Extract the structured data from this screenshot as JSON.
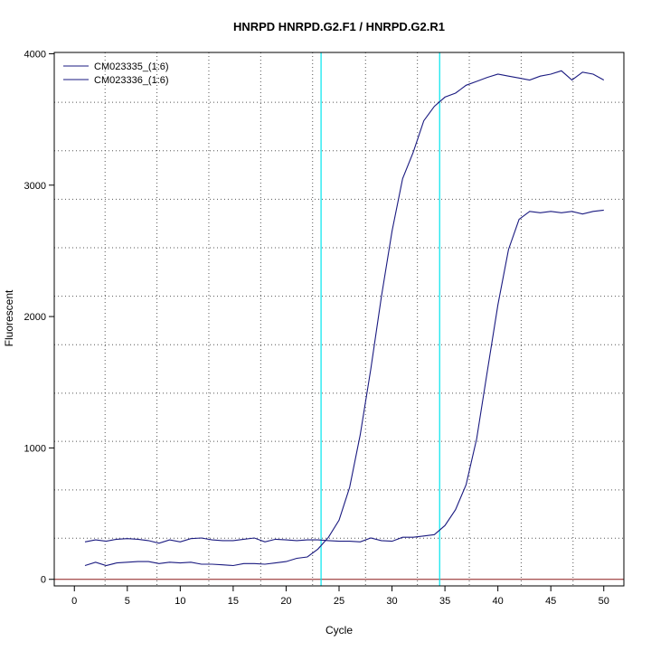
{
  "chart_data": {
    "type": "line",
    "title": "HNRPD  HNRPD.G2.F1 / HNRPD.G2.R1",
    "xlabel": "Cycle",
    "ylabel": "Fluorescent",
    "xlim": [
      -1.9,
      51.9
    ],
    "ylim": [
      -50,
      4010
    ],
    "x_ticks": [
      0,
      5,
      10,
      15,
      20,
      25,
      30,
      35,
      40,
      45,
      50
    ],
    "y_ticks": [
      0,
      1000,
      2000,
      3000,
      4000
    ],
    "x_grid": [
      2.9,
      7.8,
      12.7,
      17.6,
      22.5,
      27.5,
      32.4,
      37.3,
      42.2,
      47.1
    ],
    "y_grid": [
      313,
      680,
      1050,
      1417,
      1786,
      2155,
      2524,
      2893,
      3262,
      3631
    ],
    "grid": true,
    "legend_position": "top-left",
    "threshold_line": {
      "y": 0,
      "color": "#8b1a1a"
    },
    "vertical_markers": [
      {
        "x": 23.3,
        "color": "#00e5ee"
      },
      {
        "x": 34.5,
        "color": "#00e5ee"
      }
    ],
    "series": [
      {
        "name": "CM023335_(1:6)",
        "color": "#1a1a80",
        "x": [
          1,
          2,
          3,
          4,
          5,
          6,
          7,
          8,
          9,
          10,
          11,
          12,
          13,
          14,
          15,
          16,
          17,
          18,
          19,
          20,
          21,
          22,
          23,
          24,
          25,
          26,
          27,
          28,
          29,
          30,
          31,
          32,
          33,
          34,
          35,
          36,
          37,
          38,
          39,
          40,
          41,
          42,
          43,
          44,
          45,
          46,
          47,
          48,
          49,
          50
        ],
        "y": [
          105,
          130,
          105,
          125,
          130,
          135,
          135,
          120,
          130,
          125,
          130,
          115,
          115,
          110,
          105,
          120,
          120,
          115,
          125,
          135,
          160,
          170,
          230,
          320,
          450,
          700,
          1100,
          1600,
          2150,
          2650,
          3050,
          3250,
          3490,
          3600,
          3670,
          3700,
          3760,
          3790,
          3820,
          3845,
          3830,
          3815,
          3800,
          3830,
          3845,
          3870,
          3800,
          3860,
          3845,
          3800
        ]
      },
      {
        "name": "CM023336_(1:6)",
        "color": "#1a1a80",
        "x": [
          1,
          2,
          3,
          4,
          5,
          6,
          7,
          8,
          9,
          10,
          11,
          12,
          13,
          14,
          15,
          16,
          17,
          18,
          19,
          20,
          21,
          22,
          23,
          24,
          25,
          26,
          27,
          28,
          29,
          30,
          31,
          32,
          33,
          34,
          35,
          36,
          37,
          38,
          39,
          40,
          41,
          42,
          43,
          44,
          45,
          46,
          47,
          48,
          49,
          50
        ],
        "y": [
          285,
          300,
          290,
          305,
          310,
          305,
          295,
          275,
          300,
          285,
          310,
          315,
          300,
          295,
          295,
          305,
          315,
          285,
          305,
          300,
          295,
          300,
          300,
          295,
          290,
          290,
          285,
          315,
          295,
          290,
          320,
          320,
          330,
          340,
          410,
          530,
          720,
          1070,
          1580,
          2090,
          2510,
          2740,
          2800,
          2790,
          2800,
          2790,
          2800,
          2780,
          2800,
          2810
        ]
      }
    ]
  }
}
